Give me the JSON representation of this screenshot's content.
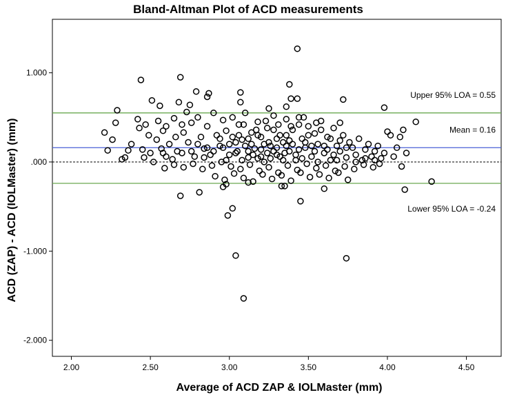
{
  "chart_data": {
    "type": "scatter",
    "title": "Bland-Altman Plot of ACD measurements",
    "xlabel": "Average of ACD ZAP & IOLMaster (mm)",
    "ylabel": "ACD (ZAP) - ACD (IOLMaster) (mm)",
    "xlim": [
      1.88,
      4.72
    ],
    "ylim": [
      -2.18,
      1.6
    ],
    "x_ticks": [
      2.0,
      2.5,
      3.0,
      3.5,
      4.0,
      4.5
    ],
    "x_tick_labels": [
      "2.00",
      "2.50",
      "3.00",
      "3.50",
      "4.00",
      "4.50"
    ],
    "y_ticks": [
      1.0,
      0.0,
      -1.0,
      -2.0
    ],
    "y_tick_labels": [
      "1.000",
      ".000",
      "-1.000",
      "-2.000"
    ],
    "grid": false,
    "colors": {
      "limits": "#6aa84f",
      "mean": "#4a5fd6",
      "zero": "#000000",
      "marker": "#000000"
    },
    "reference_lines": [
      {
        "kind": "upper-loa",
        "y": 0.55,
        "label": "Upper 95% LOA = 0.55"
      },
      {
        "kind": "mean",
        "y": 0.16,
        "label": "Mean = 0.16"
      },
      {
        "kind": "zero",
        "y": 0.0,
        "label": ""
      },
      {
        "kind": "lower-loa",
        "y": -0.24,
        "label": "Lower 95% LOA = -0.24"
      }
    ],
    "points": [
      [
        3.43,
        1.27
      ],
      [
        2.44,
        0.92
      ],
      [
        2.69,
        0.95
      ],
      [
        3.38,
        0.87
      ],
      [
        2.79,
        0.79
      ],
      [
        2.87,
        0.77
      ],
      [
        3.07,
        0.78
      ],
      [
        2.51,
        0.69
      ],
      [
        2.68,
        0.67
      ],
      [
        3.07,
        0.67
      ],
      [
        3.39,
        0.71
      ],
      [
        3.43,
        0.71
      ],
      [
        3.72,
        0.7
      ],
      [
        3.98,
        0.61
      ],
      [
        2.56,
        0.63
      ],
      [
        2.75,
        0.64
      ],
      [
        2.29,
        0.58
      ],
      [
        2.86,
        0.73
      ],
      [
        3.25,
        0.6
      ],
      [
        3.36,
        0.62
      ],
      [
        2.21,
        0.33
      ],
      [
        2.26,
        0.25
      ],
      [
        2.23,
        0.13
      ],
      [
        2.28,
        0.44
      ],
      [
        2.34,
        0.05
      ],
      [
        2.36,
        0.13
      ],
      [
        2.38,
        0.2
      ],
      [
        2.32,
        0.03
      ],
      [
        2.42,
        0.48
      ],
      [
        2.43,
        0.38
      ],
      [
        2.45,
        0.14
      ],
      [
        2.46,
        0.05
      ],
      [
        2.47,
        0.42
      ],
      [
        2.49,
        0.3
      ],
      [
        2.5,
        0.1
      ],
      [
        2.52,
        0.0
      ],
      [
        2.54,
        0.25
      ],
      [
        2.55,
        0.46
      ],
      [
        2.57,
        0.15
      ],
      [
        2.58,
        0.35
      ],
      [
        2.6,
        0.4
      ],
      [
        2.62,
        0.2
      ],
      [
        2.64,
        0.03
      ],
      [
        2.65,
        0.49
      ],
      [
        2.67,
        0.12
      ],
      [
        2.71,
        0.33
      ],
      [
        2.73,
        0.56
      ],
      [
        2.74,
        0.22
      ],
      [
        2.76,
        0.44
      ],
      [
        2.78,
        0.06
      ],
      [
        2.8,
        0.5
      ],
      [
        2.82,
        0.28
      ],
      [
        2.84,
        0.15
      ],
      [
        2.86,
        0.4
      ],
      [
        2.88,
        0.08
      ],
      [
        2.9,
        0.55
      ],
      [
        2.92,
        0.3
      ],
      [
        2.94,
        0.18
      ],
      [
        2.96,
        0.47
      ],
      [
        2.98,
        0.02
      ],
      [
        2.98,
        0.35
      ],
      [
        3.0,
        0.2
      ],
      [
        3.02,
        0.5
      ],
      [
        3.04,
        0.1
      ],
      [
        3.06,
        0.42
      ],
      [
        3.08,
        0.25
      ],
      [
        3.1,
        0.55
      ],
      [
        3.12,
        0.05
      ],
      [
        3.14,
        0.33
      ],
      [
        3.16,
        0.15
      ],
      [
        3.18,
        0.45
      ],
      [
        3.2,
        0.28
      ],
      [
        3.22,
        0.0
      ],
      [
        3.24,
        0.38
      ],
      [
        3.26,
        0.18
      ],
      [
        3.28,
        0.52
      ],
      [
        3.3,
        0.08
      ],
      [
        3.32,
        0.3
      ],
      [
        3.34,
        0.22
      ],
      [
        3.36,
        0.48
      ],
      [
        3.38,
        0.12
      ],
      [
        3.4,
        0.36
      ],
      [
        3.42,
        0.02
      ],
      [
        3.44,
        0.5
      ],
      [
        3.46,
        0.26
      ],
      [
        3.48,
        0.16
      ],
      [
        3.5,
        0.4
      ],
      [
        3.52,
        0.06
      ],
      [
        3.54,
        0.32
      ],
      [
        3.56,
        0.2
      ],
      [
        3.58,
        0.46
      ],
      [
        3.6,
        0.1
      ],
      [
        3.62,
        0.28
      ],
      [
        3.64,
        0.02
      ],
      [
        3.66,
        0.38
      ],
      [
        3.68,
        0.18
      ],
      [
        3.7,
        0.12
      ],
      [
        3.72,
        0.3
      ],
      [
        3.74,
        0.05
      ],
      [
        3.76,
        0.22
      ],
      [
        3.78,
        0.16
      ],
      [
        3.8,
        0.08
      ],
      [
        3.82,
        0.26
      ],
      [
        3.84,
        0.02
      ],
      [
        3.86,
        0.14
      ],
      [
        3.88,
        0.2
      ],
      [
        3.9,
        0.06
      ],
      [
        3.92,
        0.12
      ],
      [
        3.94,
        0.18
      ],
      [
        3.96,
        0.04
      ],
      [
        3.98,
        0.1
      ],
      [
        4.0,
        0.34
      ],
      [
        4.02,
        0.3
      ],
      [
        4.04,
        0.06
      ],
      [
        4.06,
        0.16
      ],
      [
        4.08,
        0.28
      ],
      [
        4.1,
        0.36
      ],
      [
        4.12,
        0.1
      ],
      [
        4.18,
        0.45
      ],
      [
        3.05,
        0.12
      ],
      [
        3.1,
        0.18
      ],
      [
        3.15,
        0.08
      ],
      [
        3.2,
        0.14
      ],
      [
        3.25,
        0.22
      ],
      [
        3.3,
        0.16
      ],
      [
        3.35,
        0.1
      ],
      [
        3.12,
        0.26
      ],
      [
        3.18,
        0.04
      ],
      [
        3.22,
        0.2
      ],
      [
        3.28,
        0.12
      ],
      [
        3.32,
        0.06
      ],
      [
        3.38,
        0.24
      ],
      [
        3.44,
        0.14
      ],
      [
        3.0,
        0.08
      ],
      [
        2.96,
        0.16
      ],
      [
        3.08,
        0.02
      ],
      [
        3.14,
        0.2
      ],
      [
        3.26,
        0.04
      ],
      [
        3.36,
        0.18
      ],
      [
        3.42,
        0.08
      ],
      [
        3.48,
        0.22
      ],
      [
        3.54,
        0.12
      ],
      [
        3.6,
        0.18
      ],
      [
        3.66,
        0.08
      ],
      [
        3.7,
        0.24
      ],
      [
        3.02,
        0.28
      ],
      [
        3.06,
        0.3
      ],
      [
        2.9,
        0.12
      ],
      [
        2.84,
        0.05
      ],
      [
        2.8,
        0.2
      ],
      [
        2.7,
        0.1
      ],
      [
        2.66,
        0.28
      ],
      [
        2.6,
        0.06
      ],
      [
        2.58,
        0.1
      ],
      [
        3.18,
        0.3
      ],
      [
        3.24,
        0.1
      ],
      [
        3.3,
        0.26
      ],
      [
        3.34,
        0.02
      ],
      [
        3.4,
        0.2
      ],
      [
        3.46,
        0.04
      ],
      [
        3.52,
        0.18
      ],
      [
        3.56,
        0.0
      ],
      [
        3.62,
        0.14
      ],
      [
        3.68,
        0.02
      ],
      [
        3.74,
        0.16
      ],
      [
        3.8,
        0.0
      ],
      [
        3.86,
        0.04
      ],
      [
        3.92,
        0.02
      ],
      [
        3.2,
        0.06
      ],
      [
        3.12,
        0.12
      ],
      [
        3.04,
        0.22
      ],
      [
        2.94,
        0.26
      ],
      [
        2.86,
        0.16
      ],
      [
        2.76,
        0.12
      ],
      [
        2.7,
        0.42
      ],
      [
        3.28,
        0.36
      ],
      [
        3.36,
        0.3
      ],
      [
        3.44,
        0.42
      ],
      [
        3.5,
        0.3
      ],
      [
        3.58,
        0.36
      ],
      [
        3.64,
        0.26
      ],
      [
        3.7,
        0.44
      ],
      [
        3.09,
        0.42
      ],
      [
        3.17,
        0.36
      ],
      [
        3.23,
        0.46
      ],
      [
        3.31,
        0.42
      ],
      [
        3.39,
        0.4
      ],
      [
        3.47,
        0.5
      ],
      [
        3.55,
        0.44
      ],
      [
        2.95,
        0.0
      ],
      [
        3.01,
        -0.05
      ],
      [
        3.07,
        -0.08
      ],
      [
        3.13,
        -0.03
      ],
      [
        3.19,
        -0.1
      ],
      [
        3.25,
        -0.06
      ],
      [
        3.31,
        -0.12
      ],
      [
        3.37,
        -0.04
      ],
      [
        3.43,
        -0.09
      ],
      [
        3.49,
        -0.02
      ],
      [
        3.55,
        -0.07
      ],
      [
        3.61,
        -0.04
      ],
      [
        3.67,
        -0.1
      ],
      [
        3.73,
        -0.05
      ],
      [
        3.79,
        -0.08
      ],
      [
        3.85,
        -0.03
      ],
      [
        3.91,
        -0.06
      ],
      [
        2.89,
        -0.04
      ],
      [
        2.83,
        -0.08
      ],
      [
        2.77,
        -0.02
      ],
      [
        2.71,
        -0.06
      ],
      [
        2.65,
        -0.03
      ],
      [
        2.59,
        -0.07
      ],
      [
        2.91,
        -0.16
      ],
      [
        2.97,
        -0.2
      ],
      [
        3.03,
        -0.13
      ],
      [
        3.09,
        -0.18
      ],
      [
        3.15,
        -0.22
      ],
      [
        3.21,
        -0.14
      ],
      [
        3.27,
        -0.19
      ],
      [
        3.33,
        -0.15
      ],
      [
        3.39,
        -0.21
      ],
      [
        3.45,
        -0.12
      ],
      [
        3.51,
        -0.17
      ],
      [
        3.57,
        -0.14
      ],
      [
        3.63,
        -0.18
      ],
      [
        3.69,
        -0.12
      ],
      [
        3.75,
        -0.2
      ],
      [
        2.98,
        -0.25
      ],
      [
        3.12,
        -0.23
      ],
      [
        3.35,
        -0.27
      ],
      [
        3.6,
        -0.3
      ],
      [
        2.96,
        -0.28
      ],
      [
        2.81,
        -0.34
      ],
      [
        2.69,
        -0.38
      ],
      [
        3.02,
        -0.52
      ],
      [
        2.99,
        -0.6
      ],
      [
        3.45,
        -0.44
      ],
      [
        3.33,
        -0.27
      ],
      [
        3.04,
        -1.05
      ],
      [
        3.09,
        -1.53
      ],
      [
        3.74,
        -1.08
      ],
      [
        4.28,
        -0.22
      ],
      [
        4.11,
        -0.31
      ],
      [
        4.09,
        -0.05
      ],
      [
        3.95,
        -0.02
      ]
    ]
  }
}
